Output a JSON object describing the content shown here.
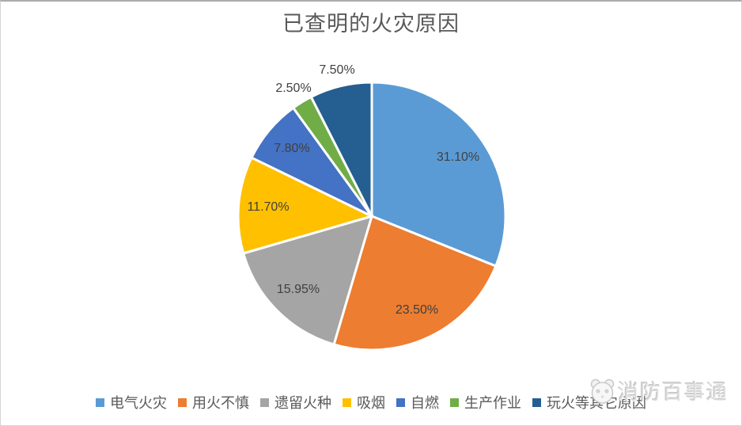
{
  "title": "已查明的火灾原因",
  "watermark": {
    "text": "消防百事通",
    "logo": "panda-face-icon"
  },
  "colors": {
    "title_text": "#595959",
    "label_text": "#404040",
    "legend_text": "#595959",
    "slice_gap_stroke": "#ffffff",
    "frame_border": "#d4d4d4"
  },
  "chart_data": {
    "type": "pie",
    "title": "已查明的火灾原因",
    "start_angle_deg": 0,
    "direction": "clockwise",
    "legend_position": "bottom",
    "data_labels": "percent",
    "slices": [
      {
        "label": "电气火灾",
        "value": 31.1,
        "display": "31.10%",
        "color": "#5B9BD5",
        "label_pos": "inside"
      },
      {
        "label": "用火不慎",
        "value": 23.5,
        "display": "23.50%",
        "color": "#ED7D31",
        "label_pos": "inside"
      },
      {
        "label": "遗留火种",
        "value": 15.95,
        "display": "15.95%",
        "color": "#A5A5A5",
        "label_pos": "inside"
      },
      {
        "label": "吸烟",
        "value": 11.7,
        "display": "11.70%",
        "color": "#FFC000",
        "label_pos": "inside"
      },
      {
        "label": "自燃",
        "value": 7.8,
        "display": "7.80%",
        "color": "#4472C4",
        "label_pos": "inside"
      },
      {
        "label": "生产作业",
        "value": 2.5,
        "display": "2.50%",
        "color": "#70AD47",
        "label_pos": "outside"
      },
      {
        "label": "玩火等其它原因",
        "value": 7.5,
        "display": "7.50%",
        "color": "#255E91",
        "label_pos": "outside"
      }
    ]
  }
}
